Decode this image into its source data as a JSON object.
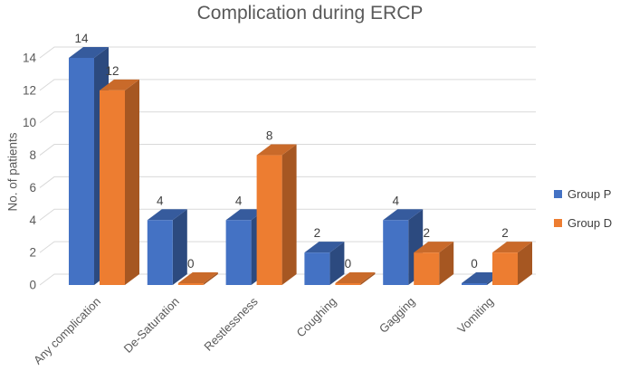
{
  "chart_data": {
    "type": "bar",
    "style": "3d-clustered-column",
    "title": "Complication during ERCP",
    "xlabel": "",
    "ylabel": "No. of patients",
    "ylim": [
      0,
      14
    ],
    "ytick_step": 2,
    "grid": true,
    "legend_position": "right",
    "data_labels": true,
    "categories": [
      "Any complication",
      "De-Saturation",
      "Restlessness",
      "Coughing",
      "Gagging",
      "Vomiting"
    ],
    "series": [
      {
        "name": "Group P",
        "color": "#4472C4",
        "color_top": "#365B9D",
        "color_side": "#2C4A7F",
        "values": [
          14,
          4,
          4,
          2,
          4,
          0
        ]
      },
      {
        "name": "Group D",
        "color": "#ED7D31",
        "color_top": "#C96A2A",
        "color_side": "#A65722",
        "values": [
          12,
          0,
          8,
          0,
          2,
          2
        ]
      }
    ],
    "colors": {
      "gridline": "#D9D9D9",
      "axis_text": "#595959",
      "label_text": "#404040",
      "title_text": "#595959",
      "background": "#FFFFFF"
    }
  }
}
